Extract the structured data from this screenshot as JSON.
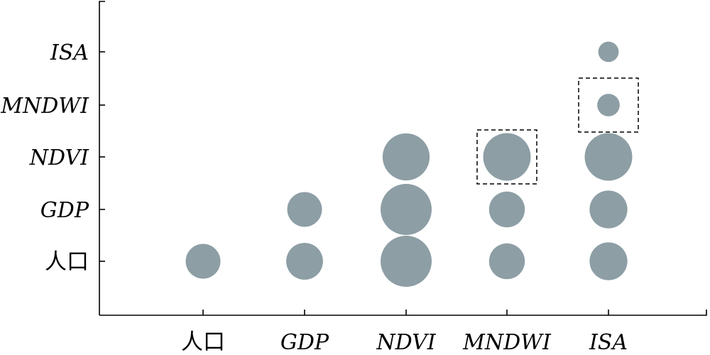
{
  "chart_data": {
    "type": "scatter",
    "subtype": "bubble-matrix",
    "title": "",
    "xlabel": "",
    "ylabel": "",
    "categories_x": [
      "人口",
      "GDP",
      "NDVI",
      "MNDWI",
      "ISA"
    ],
    "categories_y": [
      "人口",
      "GDP",
      "NDVI",
      "MNDWI",
      "ISA"
    ],
    "bubble_color": "#8d9ea5",
    "grid": false,
    "points": [
      {
        "x": "人口",
        "y": "人口",
        "size": 0.68
      },
      {
        "x": "GDP",
        "y": "人口",
        "size": 0.72
      },
      {
        "x": "GDP",
        "y": "GDP",
        "size": 0.68
      },
      {
        "x": "NDVI",
        "y": "人口",
        "size": 1.0
      },
      {
        "x": "NDVI",
        "y": "GDP",
        "size": 1.0
      },
      {
        "x": "NDVI",
        "y": "NDVI",
        "size": 0.92
      },
      {
        "x": "MNDWI",
        "y": "人口",
        "size": 0.7
      },
      {
        "x": "MNDWI",
        "y": "GDP",
        "size": 0.7
      },
      {
        "x": "MNDWI",
        "y": "NDVI",
        "size": 0.93
      },
      {
        "x": "ISA",
        "y": "人口",
        "size": 0.74
      },
      {
        "x": "ISA",
        "y": "GDP",
        "size": 0.74
      },
      {
        "x": "ISA",
        "y": "NDVI",
        "size": 0.93
      },
      {
        "x": "ISA",
        "y": "MNDWI",
        "size": 0.44
      },
      {
        "x": "ISA",
        "y": "ISA",
        "size": 0.4
      }
    ],
    "highlighted": [
      {
        "x": "MNDWI",
        "y": "NDVI"
      },
      {
        "x": "ISA",
        "y": "MNDWI"
      }
    ]
  }
}
